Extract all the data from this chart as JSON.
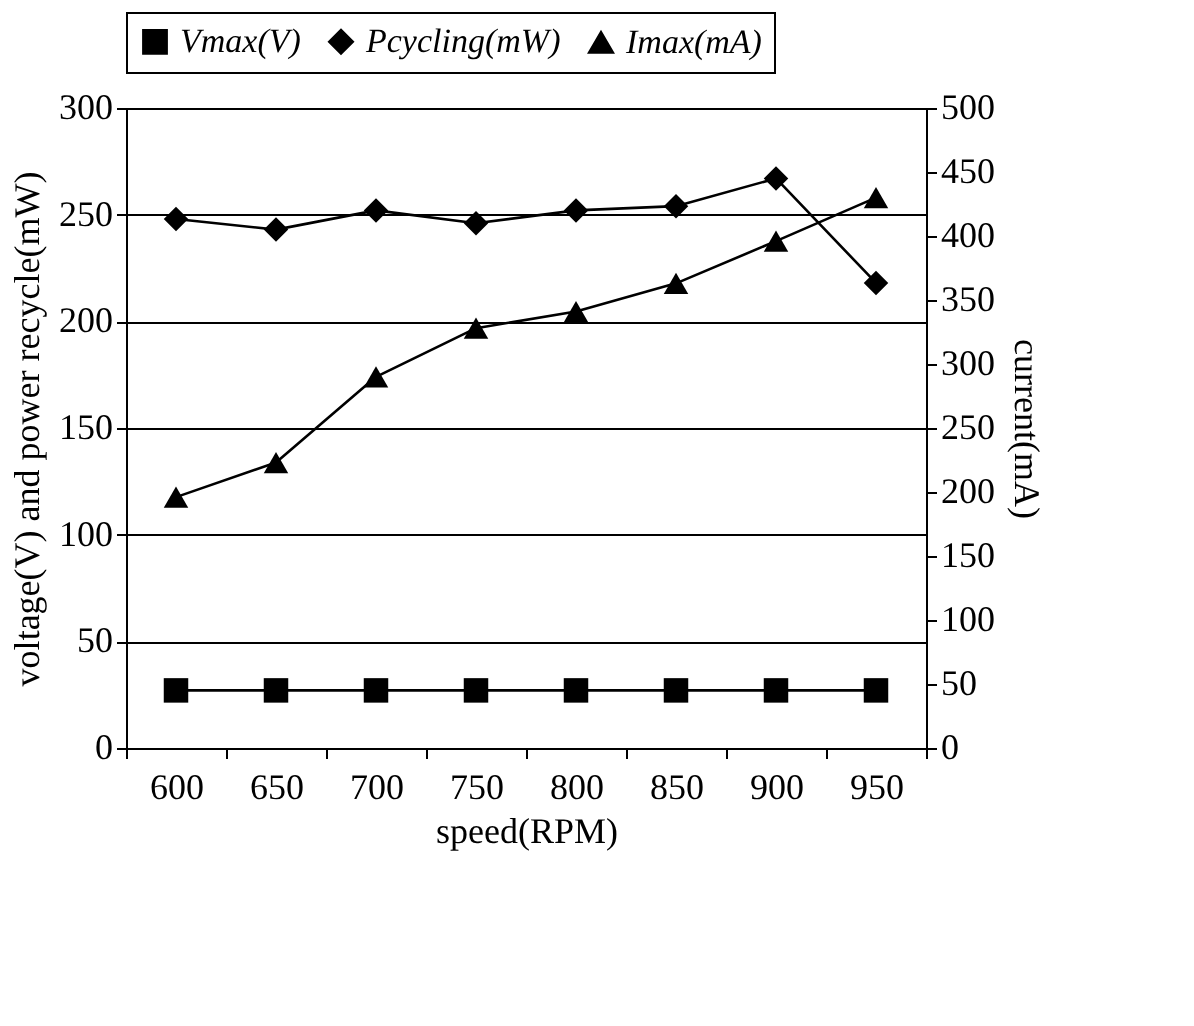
{
  "chart_data": {
    "type": "line",
    "xlabel": "speed(RPM)",
    "ylabel": "voltage(V) and power recycle(mW)",
    "y2label": "current(mA)",
    "categories": [
      "600",
      "650",
      "700",
      "750",
      "800",
      "850",
      "900",
      "950"
    ],
    "series": [
      {
        "name": "Vmax(V)",
        "color": "#000000",
        "marker": "square",
        "values": [
          27,
          27,
          27,
          27,
          27,
          27,
          27,
          27
        ]
      },
      {
        "name": "Pcycling(mW)",
        "color": "#000000",
        "marker": "diamond",
        "values": [
          248,
          243,
          252,
          246,
          252,
          254,
          267,
          218
        ]
      },
      {
        "name": "Imax(mA)",
        "color": "#000000",
        "marker": "triangle",
        "axis": "y2",
        "values": [
          196,
          223,
          290,
          328,
          341,
          363,
          396,
          430
        ]
      }
    ],
    "ylim": [
      0,
      300
    ],
    "yticks": [
      0,
      50,
      100,
      150,
      200,
      250,
      300
    ],
    "y2lim": [
      0,
      500
    ],
    "y2ticks": [
      0,
      50,
      100,
      150,
      200,
      250,
      300,
      350,
      400,
      450,
      500
    ],
    "grid": "y",
    "legend": "top",
    "line_style": "solid"
  }
}
